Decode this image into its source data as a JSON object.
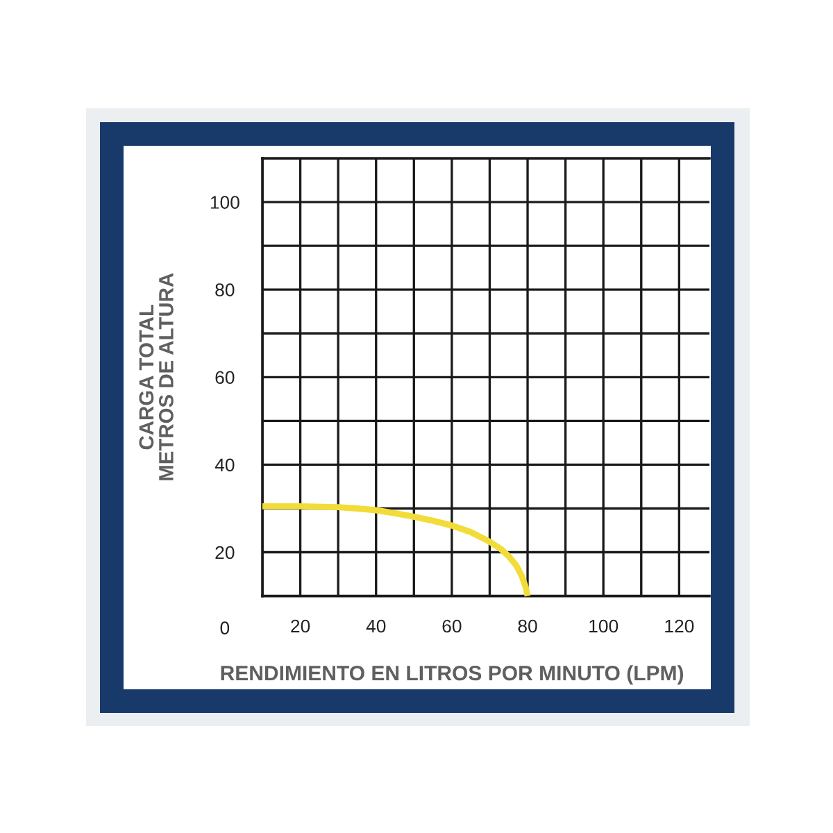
{
  "chart_data": {
    "type": "line",
    "xlabel": "RENDIMIENTO EN LITROS POR MINUTO (LPM)",
    "ylabel": "CARGA TOTAL\nMETROS DE ALTURA",
    "annotations": [
      "0"
    ],
    "x": [
      10,
      20,
      30,
      35,
      40,
      45,
      50,
      55,
      60,
      65,
      70,
      73,
      75,
      77,
      78.5,
      79.5,
      80
    ],
    "series": [
      {
        "color": "#f2dc3a",
        "values": [
          30.5,
          30.5,
          30.3,
          30,
          29.6,
          28.9,
          28.1,
          27.2,
          26.1,
          24.6,
          22.4,
          20.7,
          19.1,
          17,
          14.5,
          12,
          10
        ]
      }
    ],
    "xlim": [
      10,
      128
    ],
    "ylim": [
      10,
      110
    ],
    "xticks": [
      {
        "value": 10,
        "label": null
      },
      20,
      {
        "value": 30,
        "label": null
      },
      40,
      {
        "value": 50,
        "label": null
      },
      60,
      {
        "value": 70,
        "label": null
      },
      80,
      {
        "value": 90,
        "label": null
      },
      100,
      {
        "value": 110,
        "label": null
      },
      120
    ],
    "yticks": [
      {
        "value": 10,
        "label": null
      },
      20,
      {
        "value": 30,
        "label": null
      },
      40,
      {
        "value": 50,
        "label": null
      },
      60,
      {
        "value": 70,
        "label": null
      },
      80,
      {
        "value": 90,
        "label": null
      },
      100,
      {
        "value": 110,
        "label": null
      }
    ],
    "grid": true,
    "marker": "none",
    "line_style": "solid"
  }
}
